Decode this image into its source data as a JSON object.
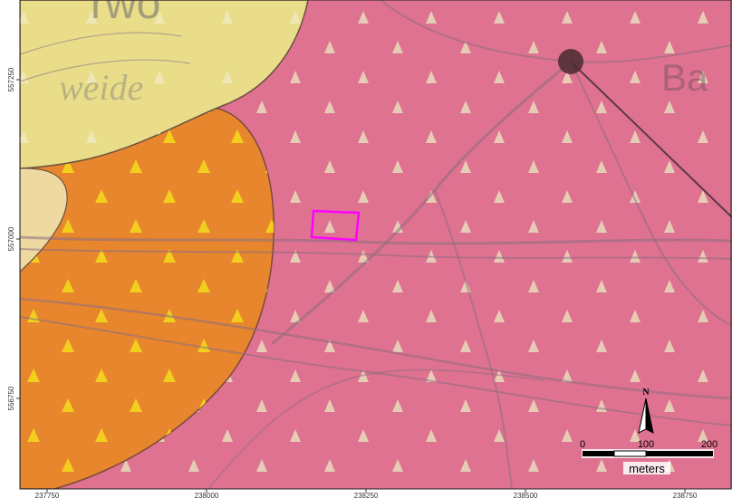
{
  "map": {
    "x_ticks": [
      "237750",
      "238000",
      "238250",
      "238500",
      "238750"
    ],
    "y_ticks": [
      "557250",
      "557000",
      "556750"
    ],
    "visible_map_text": {
      "top_left_fragment": "rwo",
      "left_fragment": "weide",
      "right_fragment": "Ba"
    },
    "north_arrow": {
      "label": "N",
      "icon": "north-arrow-icon"
    },
    "scale_bar": {
      "labels": [
        "0",
        "100",
        "200"
      ],
      "unit": "meters"
    },
    "highlight_box": {
      "color": "#ff00ff"
    },
    "colors": {
      "pink_unit": "#df7290",
      "orange_unit": "#e8862d",
      "yellow_unit": "#e9dd8a",
      "triangle_symbol": "#e7d6ba",
      "triangle_on_orange": "#f0d21c",
      "border": "#333333"
    }
  }
}
